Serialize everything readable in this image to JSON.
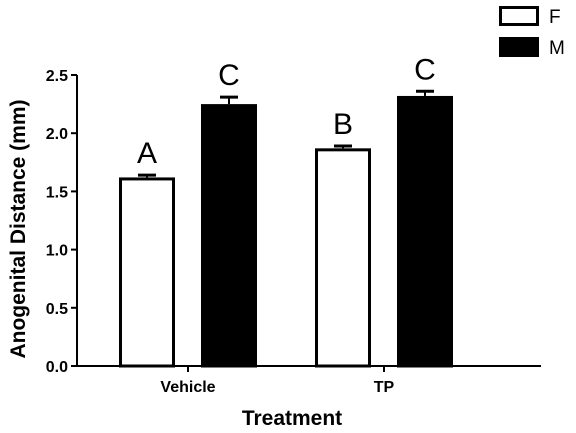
{
  "chart_data": {
    "type": "bar",
    "title": "",
    "xlabel": "Treatment",
    "ylabel": "Anogenital Distance (mm)",
    "categories": [
      "Vehicle",
      "TP"
    ],
    "series": [
      {
        "name": "F",
        "values": [
          1.62,
          1.87
        ],
        "errors": [
          0.02,
          0.02
        ],
        "fill": "#ffffff"
      },
      {
        "name": "M",
        "values": [
          2.25,
          2.32
        ],
        "errors": [
          0.06,
          0.04
        ],
        "fill": "#000000"
      }
    ],
    "significance_labels": [
      [
        "A",
        "C"
      ],
      [
        "B",
        "C"
      ]
    ],
    "ylim": [
      0,
      2.5
    ],
    "yticks": [
      "0.0",
      "0.5",
      "1.0",
      "1.5",
      "2.0",
      "2.5"
    ],
    "grid": false,
    "legend_position": "top-right"
  }
}
